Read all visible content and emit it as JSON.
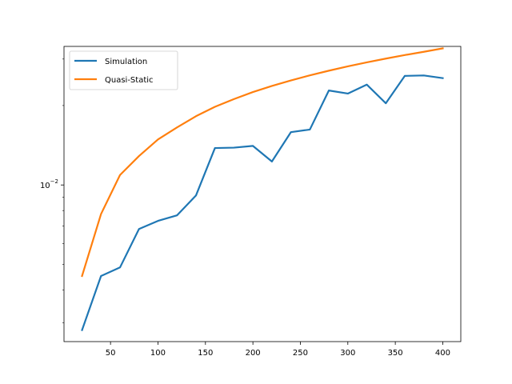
{
  "chart_data": {
    "type": "line",
    "title": "",
    "xlabel": "",
    "ylabel": "",
    "x_scale": "linear",
    "y_scale": "log",
    "xlim": [
      1,
      419
    ],
    "ylim": [
      0.00255,
      0.0335
    ],
    "grid": false,
    "legend_position": "top-left",
    "x_ticks": [
      50,
      100,
      150,
      200,
      250,
      300,
      350,
      400
    ],
    "x_tick_labels": [
      "50",
      "100",
      "150",
      "200",
      "250",
      "300",
      "350",
      "400"
    ],
    "y_ticks": [
      0.01
    ],
    "y_tick_labels": [
      "10",
      "−2"
    ],
    "x": [
      20,
      40,
      60,
      80,
      100,
      120,
      140,
      160,
      180,
      200,
      220,
      240,
      260,
      280,
      300,
      320,
      340,
      360,
      380,
      400
    ],
    "series": [
      {
        "name": "Simulation",
        "color": "#1f77b4",
        "values": [
          0.00282,
          0.00452,
          0.00487,
          0.00681,
          0.00731,
          0.00767,
          0.00912,
          0.0138,
          0.01385,
          0.01406,
          0.01227,
          0.01585,
          0.01622,
          0.0228,
          0.0222,
          0.024,
          0.0204,
          0.0259,
          0.026,
          0.0254
        ]
      },
      {
        "name": "Quasi-Static",
        "color": "#ff7f0e",
        "values": [
          0.00452,
          0.00776,
          0.01091,
          0.01287,
          0.01488,
          0.01652,
          0.01822,
          0.01978,
          0.02115,
          0.02249,
          0.02372,
          0.0249,
          0.02602,
          0.0271,
          0.02814,
          0.02915,
          0.03012,
          0.03107,
          0.03196,
          0.03293
        ]
      }
    ]
  }
}
